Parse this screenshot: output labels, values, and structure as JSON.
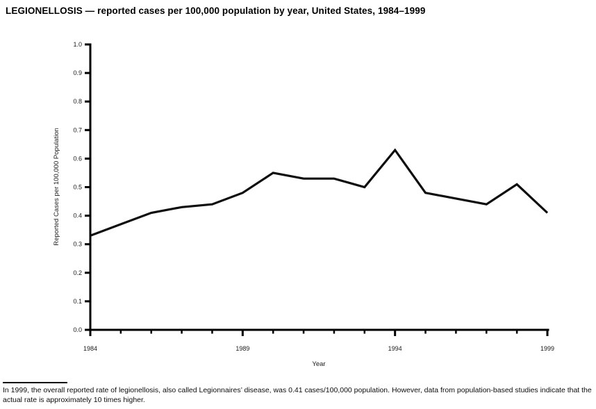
{
  "page": {
    "title": "LEGIONELLOSIS — reported cases per 100,000 population by year, United States, 1984–1999",
    "footnote": "In 1999, the overall reported rate of legionellosis, also called Legionnaires’ disease, was 0.41 cases/100,000 population. However, data from population-based studies indicate that the actual rate is approximately 10 times higher."
  },
  "chart_data": {
    "type": "line",
    "title": "LEGIONELLOSIS — reported cases per 100,000 population by year, United States, 1984–1999",
    "xlabel": "Year",
    "ylabel": "Reported Cases per 100,000 Population",
    "x": [
      1984,
      1985,
      1986,
      1987,
      1988,
      1989,
      1990,
      1991,
      1992,
      1993,
      1994,
      1995,
      1996,
      1997,
      1998,
      1999
    ],
    "series": [
      {
        "name": "Reported cases per 100,000 population",
        "values": [
          0.33,
          0.37,
          0.41,
          0.43,
          0.44,
          0.48,
          0.55,
          0.53,
          0.53,
          0.5,
          0.63,
          0.48,
          0.46,
          0.44,
          0.51,
          0.41
        ]
      }
    ],
    "ylim": [
      0.0,
      1.0
    ],
    "xlim": [
      1984,
      1999
    ],
    "y_tick_labels": [
      "0.0",
      "0.1",
      "0.2",
      "0.3",
      "0.4",
      "0.5",
      "0.6",
      "0.7",
      "0.8",
      "0.9",
      "1.0"
    ],
    "x_major_tick_labels": [
      "1984",
      "1989",
      "1994",
      "1999"
    ],
    "grid": false,
    "legend": "none",
    "line_color": "#0d0d0d",
    "axis_color": "#000000",
    "background_color": "#ffffff"
  }
}
